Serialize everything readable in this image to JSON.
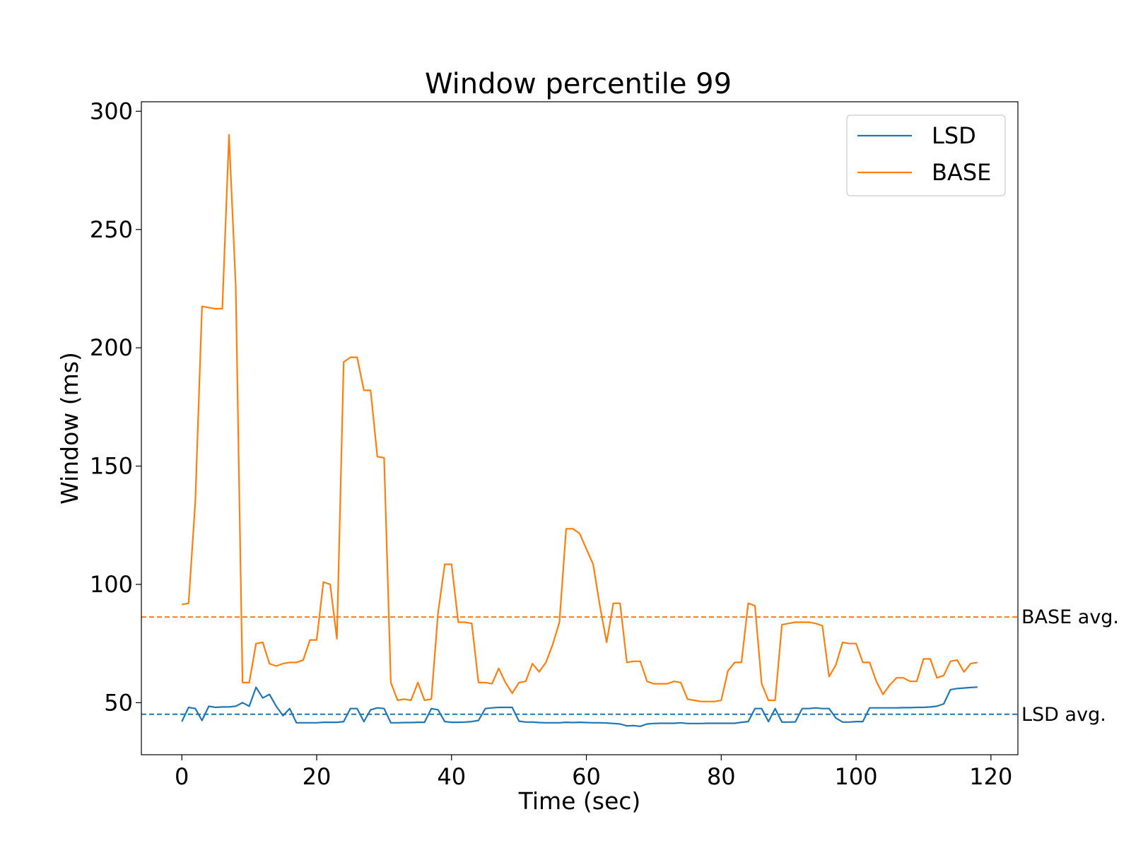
{
  "chart_data": {
    "type": "line",
    "title": "Window percentile 99",
    "xlabel": "Time (sec)",
    "ylabel": "Window (ms)",
    "xlim": [
      -6,
      124
    ],
    "ylim": [
      28,
      304
    ],
    "xticks": [
      0,
      20,
      40,
      60,
      80,
      100,
      120
    ],
    "yticks": [
      50,
      100,
      150,
      200,
      250,
      300
    ],
    "grid": false,
    "legend_position": "top-right",
    "series": [
      {
        "name": "LSD",
        "color": "#1f77b4",
        "x": [
          0,
          1,
          2,
          3,
          4,
          5,
          6,
          7,
          8,
          9,
          10,
          11,
          12,
          13,
          14,
          15,
          16,
          17,
          18,
          19,
          20,
          21,
          22,
          23,
          24,
          25,
          26,
          27,
          28,
          29,
          30,
          31,
          32,
          33,
          34,
          35,
          36,
          37,
          38,
          39,
          40,
          41,
          42,
          43,
          44,
          45,
          46,
          47,
          48,
          49,
          50,
          51,
          52,
          53,
          54,
          55,
          56,
          57,
          58,
          59,
          60,
          61,
          62,
          63,
          64,
          65,
          66,
          67,
          68,
          69,
          70,
          71,
          72,
          73,
          74,
          75,
          76,
          77,
          78,
          79,
          80,
          81,
          82,
          83,
          84,
          85,
          86,
          87,
          88,
          89,
          90,
          91,
          92,
          93,
          94,
          95,
          96,
          97,
          98,
          99,
          100,
          101,
          102,
          103,
          104,
          105,
          106,
          107,
          108,
          109,
          110,
          111,
          112,
          113,
          114,
          115,
          116,
          117,
          118
        ],
        "values": [
          42,
          48,
          47.5,
          42.5,
          48.5,
          48,
          48.2,
          48.2,
          48.5,
          50,
          48.5,
          56.5,
          52,
          53.5,
          48.5,
          44.5,
          47.5,
          41.5,
          41.5,
          41.5,
          41.5,
          41.7,
          41.7,
          41.7,
          42,
          47.5,
          47.5,
          42,
          47,
          47.8,
          47.5,
          41.5,
          41.5,
          41.6,
          41.6,
          41.7,
          41.7,
          47.5,
          47,
          42,
          41.7,
          41.7,
          41.8,
          42,
          42.5,
          47.5,
          47.8,
          48,
          48,
          48,
          42.2,
          41.8,
          41.8,
          41.6,
          41.5,
          41.5,
          41.5,
          41.7,
          41.6,
          41.7,
          41.6,
          41.5,
          41.5,
          41.4,
          41.2,
          41,
          40.2,
          40.3,
          40,
          41,
          41.2,
          41.3,
          41.3,
          41.3,
          41.5,
          41.2,
          41.2,
          41.2,
          41.3,
          41.3,
          41.3,
          41.3,
          41.3,
          41.7,
          42,
          47.5,
          47.5,
          42,
          47.5,
          41.8,
          41.8,
          41.9,
          47.5,
          47.5,
          47.8,
          47.5,
          47.5,
          43.5,
          41.8,
          41.8,
          42,
          42,
          47.8,
          47.8,
          47.8,
          47.8,
          47.8,
          47.9,
          47.9,
          48,
          48,
          48.2,
          48.5,
          49.5,
          55.5,
          56,
          56.2,
          56.4,
          56.6
        ]
      },
      {
        "name": "BASE",
        "color": "#ff7f0e",
        "x": [
          0,
          1,
          2,
          3,
          4,
          5,
          6,
          7,
          8,
          9,
          10,
          11,
          12,
          13,
          14,
          15,
          16,
          17,
          18,
          19,
          20,
          21,
          22,
          23,
          24,
          25,
          26,
          27,
          28,
          29,
          30,
          31,
          32,
          33,
          34,
          35,
          36,
          37,
          38,
          39,
          40,
          41,
          42,
          43,
          44,
          45,
          46,
          47,
          48,
          49,
          50,
          51,
          52,
          53,
          54,
          55,
          56,
          57,
          58,
          59,
          60,
          61,
          62,
          63,
          64,
          65,
          66,
          67,
          68,
          69,
          70,
          71,
          72,
          73,
          74,
          75,
          76,
          77,
          78,
          79,
          80,
          81,
          82,
          83,
          84,
          85,
          86,
          87,
          88,
          89,
          90,
          91,
          92,
          93,
          94,
          95,
          96,
          97,
          98,
          99,
          100,
          101,
          102,
          103,
          104,
          105,
          106,
          107,
          108,
          109,
          110,
          111,
          112,
          113,
          114,
          115,
          116,
          117,
          118
        ],
        "values": [
          91.5,
          92,
          135,
          217.5,
          217,
          216.5,
          216.5,
          290,
          226,
          58.5,
          58.5,
          75,
          75.5,
          66.5,
          65.5,
          66.5,
          67,
          67,
          68,
          76.5,
          76.5,
          101,
          100,
          77,
          194,
          196,
          196,
          182,
          182,
          154,
          153.5,
          58.5,
          51,
          51.5,
          51,
          58.5,
          51,
          51.5,
          88,
          108.5,
          108.5,
          84,
          84,
          83.5,
          58.5,
          58.5,
          58,
          64.5,
          58.5,
          54,
          58.5,
          59,
          66.5,
          63,
          67,
          74.5,
          84,
          123.5,
          123.5,
          121.5,
          115,
          108.5,
          91,
          75.5,
          92,
          92,
          67,
          67.5,
          67.5,
          59,
          58,
          58,
          58,
          59,
          58.5,
          51.5,
          51,
          50.5,
          50.5,
          50.5,
          51,
          63.5,
          67,
          67,
          92,
          91,
          58,
          51,
          51,
          83,
          83.5,
          84,
          84,
          84,
          83.5,
          82.5,
          61,
          66,
          75.5,
          75,
          75,
          67,
          67,
          59,
          53.5,
          57.5,
          60.5,
          60.5,
          59,
          59,
          68.5,
          68.5,
          60.5,
          61.5,
          67.5,
          68,
          63,
          66.5,
          67
        ]
      }
    ],
    "reference_lines": [
      {
        "label": "BASE avg.",
        "y": 86.2,
        "color": "#ff7f0e",
        "style": "dashed"
      },
      {
        "label": "LSD avg.",
        "y": 45.1,
        "color": "#1f77b4",
        "style": "dashed"
      }
    ]
  }
}
